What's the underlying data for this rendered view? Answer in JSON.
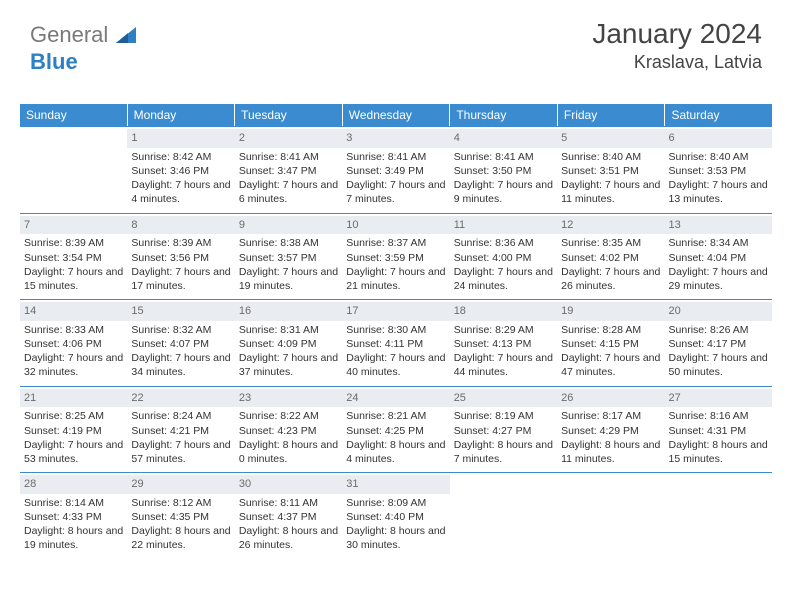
{
  "logo": {
    "text1": "General",
    "text2": "Blue"
  },
  "header": {
    "title": "January 2024",
    "location": "Kraslava, Latvia"
  },
  "colors": {
    "header_bg": "#3a8bd0",
    "header_text": "#ffffff",
    "daynum_bg": "#e9edf1",
    "daynum_text": "#6b6b6b",
    "cell_border": "#3a8bd0",
    "body_text": "#333333",
    "logo_general": "#7a7a7a",
    "logo_blue": "#2f7fc4"
  },
  "dayNames": [
    "Sunday",
    "Monday",
    "Tuesday",
    "Wednesday",
    "Thursday",
    "Friday",
    "Saturday"
  ],
  "weeks": [
    [
      {
        "n": "",
        "sunrise": "",
        "sunset": "",
        "daylight": ""
      },
      {
        "n": "1",
        "sunrise": "8:42 AM",
        "sunset": "3:46 PM",
        "daylight": "7 hours and 4 minutes."
      },
      {
        "n": "2",
        "sunrise": "8:41 AM",
        "sunset": "3:47 PM",
        "daylight": "7 hours and 6 minutes."
      },
      {
        "n": "3",
        "sunrise": "8:41 AM",
        "sunset": "3:49 PM",
        "daylight": "7 hours and 7 minutes."
      },
      {
        "n": "4",
        "sunrise": "8:41 AM",
        "sunset": "3:50 PM",
        "daylight": "7 hours and 9 minutes."
      },
      {
        "n": "5",
        "sunrise": "8:40 AM",
        "sunset": "3:51 PM",
        "daylight": "7 hours and 11 minutes."
      },
      {
        "n": "6",
        "sunrise": "8:40 AM",
        "sunset": "3:53 PM",
        "daylight": "7 hours and 13 minutes."
      }
    ],
    [
      {
        "n": "7",
        "sunrise": "8:39 AM",
        "sunset": "3:54 PM",
        "daylight": "7 hours and 15 minutes."
      },
      {
        "n": "8",
        "sunrise": "8:39 AM",
        "sunset": "3:56 PM",
        "daylight": "7 hours and 17 minutes."
      },
      {
        "n": "9",
        "sunrise": "8:38 AM",
        "sunset": "3:57 PM",
        "daylight": "7 hours and 19 minutes."
      },
      {
        "n": "10",
        "sunrise": "8:37 AM",
        "sunset": "3:59 PM",
        "daylight": "7 hours and 21 minutes."
      },
      {
        "n": "11",
        "sunrise": "8:36 AM",
        "sunset": "4:00 PM",
        "daylight": "7 hours and 24 minutes."
      },
      {
        "n": "12",
        "sunrise": "8:35 AM",
        "sunset": "4:02 PM",
        "daylight": "7 hours and 26 minutes."
      },
      {
        "n": "13",
        "sunrise": "8:34 AM",
        "sunset": "4:04 PM",
        "daylight": "7 hours and 29 minutes."
      }
    ],
    [
      {
        "n": "14",
        "sunrise": "8:33 AM",
        "sunset": "4:06 PM",
        "daylight": "7 hours and 32 minutes."
      },
      {
        "n": "15",
        "sunrise": "8:32 AM",
        "sunset": "4:07 PM",
        "daylight": "7 hours and 34 minutes."
      },
      {
        "n": "16",
        "sunrise": "8:31 AM",
        "sunset": "4:09 PM",
        "daylight": "7 hours and 37 minutes."
      },
      {
        "n": "17",
        "sunrise": "8:30 AM",
        "sunset": "4:11 PM",
        "daylight": "7 hours and 40 minutes."
      },
      {
        "n": "18",
        "sunrise": "8:29 AM",
        "sunset": "4:13 PM",
        "daylight": "7 hours and 44 minutes."
      },
      {
        "n": "19",
        "sunrise": "8:28 AM",
        "sunset": "4:15 PM",
        "daylight": "7 hours and 47 minutes."
      },
      {
        "n": "20",
        "sunrise": "8:26 AM",
        "sunset": "4:17 PM",
        "daylight": "7 hours and 50 minutes."
      }
    ],
    [
      {
        "n": "21",
        "sunrise": "8:25 AM",
        "sunset": "4:19 PM",
        "daylight": "7 hours and 53 minutes."
      },
      {
        "n": "22",
        "sunrise": "8:24 AM",
        "sunset": "4:21 PM",
        "daylight": "7 hours and 57 minutes."
      },
      {
        "n": "23",
        "sunrise": "8:22 AM",
        "sunset": "4:23 PM",
        "daylight": "8 hours and 0 minutes."
      },
      {
        "n": "24",
        "sunrise": "8:21 AM",
        "sunset": "4:25 PM",
        "daylight": "8 hours and 4 minutes."
      },
      {
        "n": "25",
        "sunrise": "8:19 AM",
        "sunset": "4:27 PM",
        "daylight": "8 hours and 7 minutes."
      },
      {
        "n": "26",
        "sunrise": "8:17 AM",
        "sunset": "4:29 PM",
        "daylight": "8 hours and 11 minutes."
      },
      {
        "n": "27",
        "sunrise": "8:16 AM",
        "sunset": "4:31 PM",
        "daylight": "8 hours and 15 minutes."
      }
    ],
    [
      {
        "n": "28",
        "sunrise": "8:14 AM",
        "sunset": "4:33 PM",
        "daylight": "8 hours and 19 minutes."
      },
      {
        "n": "29",
        "sunrise": "8:12 AM",
        "sunset": "4:35 PM",
        "daylight": "8 hours and 22 minutes."
      },
      {
        "n": "30",
        "sunrise": "8:11 AM",
        "sunset": "4:37 PM",
        "daylight": "8 hours and 26 minutes."
      },
      {
        "n": "31",
        "sunrise": "8:09 AM",
        "sunset": "4:40 PM",
        "daylight": "8 hours and 30 minutes."
      },
      {
        "n": "",
        "sunrise": "",
        "sunset": "",
        "daylight": ""
      },
      {
        "n": "",
        "sunrise": "",
        "sunset": "",
        "daylight": ""
      },
      {
        "n": "",
        "sunrise": "",
        "sunset": "",
        "daylight": ""
      }
    ]
  ],
  "labels": {
    "sunrise": "Sunrise:",
    "sunset": "Sunset:",
    "daylight": "Daylight:"
  }
}
